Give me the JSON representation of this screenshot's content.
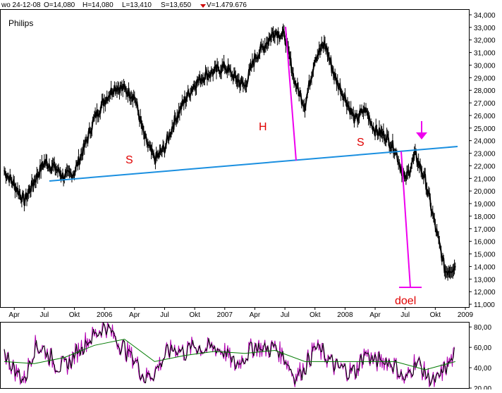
{
  "header": {
    "date": "wo 24-12-08",
    "open": "O=14,080",
    "high": "H=14,080",
    "low": "L=13,410",
    "close": "S=13,650",
    "volume": "V=1.479.676",
    "volume_marker_color": "#cc0000"
  },
  "colors": {
    "price": "#000000",
    "trendline": "#1a8fe0",
    "annotation_lines": "#ee00ee",
    "annotation_text": "#e00000",
    "osc_main": "#000000",
    "osc_fast": "#b000b0",
    "osc_signal": "#007a00"
  },
  "chart_data": [
    {
      "type": "line",
      "title": "Philips",
      "y_axis_side": "right",
      "ylim": [
        11.0,
        34.0
      ],
      "yticks": [
        "34,000",
        "33,000",
        "32,000",
        "31,000",
        "30,000",
        "29,000",
        "28,000",
        "27,000",
        "26,000",
        "25,000",
        "24,000",
        "23,000",
        "22,000",
        "21,000",
        "20,000",
        "19,000",
        "18,000",
        "17,000",
        "16,000",
        "15,000",
        "14,000",
        "13,000",
        "12,000",
        "11,000"
      ],
      "xticks": [
        "Apr",
        "Jul",
        "Okt",
        "2006",
        "Apr",
        "Jul",
        "Okt",
        "2007",
        "Apr",
        "Jul",
        "Okt",
        "2008",
        "Apr",
        "Jul",
        "Okt",
        "2009"
      ],
      "x_start": "2005-03",
      "x_end": "2009-01",
      "series": [
        {
          "x": [
            "2005-03",
            "2005-04",
            "2005-05",
            "2005-06",
            "2005-07",
            "2005-08",
            "2005-09",
            "2005-10",
            "2005-11",
            "2005-12",
            "2006-01",
            "2006-02",
            "2006-03",
            "2006-04",
            "2006-05",
            "2006-06",
            "2006-07",
            "2006-08",
            "2006-09",
            "2006-10",
            "2006-11",
            "2006-12",
            "2007-01",
            "2007-02",
            "2007-03",
            "2007-04",
            "2007-05",
            "2007-06",
            "2007-07",
            "2007-08",
            "2007-09",
            "2007-10",
            "2007-11",
            "2007-12",
            "2008-01",
            "2008-02",
            "2008-03",
            "2008-04",
            "2008-05",
            "2008-06",
            "2008-07",
            "2008-08",
            "2008-09",
            "2008-10",
            "2008-11",
            "2008-12"
          ],
          "values": [
            21.6,
            20.5,
            19.2,
            20.8,
            22.3,
            21.9,
            21.1,
            21.5,
            23.5,
            25.8,
            27.2,
            28.3,
            28.1,
            27.5,
            24.2,
            22.5,
            23.4,
            25.6,
            27.2,
            28.5,
            29.2,
            29.5,
            29.9,
            29.0,
            28.3,
            30.6,
            31.6,
            32.7,
            32.3,
            28.6,
            26.8,
            30.6,
            31.7,
            29.0,
            27.4,
            25.6,
            26.5,
            24.8,
            24.4,
            23.3,
            20.8,
            22.9,
            20.9,
            17.2,
            13.6,
            14.0
          ]
        }
      ],
      "annotations": {
        "left_shoulder": "S",
        "head": "H",
        "right_shoulder": "S",
        "target": "doel"
      }
    },
    {
      "type": "line",
      "ylim": [
        20.0,
        85.0
      ],
      "yticks": [
        "80,00",
        "60,00",
        "40,00",
        "20,00"
      ],
      "series": [
        {
          "name": "main",
          "x": [
            "2005-03",
            "2005-04",
            "2005-05",
            "2005-06",
            "2005-07",
            "2005-08",
            "2005-09",
            "2005-10",
            "2005-11",
            "2005-12",
            "2006-01",
            "2006-02",
            "2006-03",
            "2006-04",
            "2006-05",
            "2006-06",
            "2006-07",
            "2006-08",
            "2006-09",
            "2006-10",
            "2006-11",
            "2006-12",
            "2007-01",
            "2007-02",
            "2007-03",
            "2007-04",
            "2007-05",
            "2007-06",
            "2007-07",
            "2007-08",
            "2007-09",
            "2007-10",
            "2007-11",
            "2007-12",
            "2008-01",
            "2008-02",
            "2008-03",
            "2008-04",
            "2008-05",
            "2008-06",
            "2008-07",
            "2008-08",
            "2008-09",
            "2008-10",
            "2008-11",
            "2008-12"
          ],
          "values": [
            55,
            38,
            28,
            62,
            58,
            45,
            40,
            52,
            65,
            72,
            82,
            70,
            58,
            48,
            30,
            36,
            52,
            60,
            55,
            62,
            58,
            60,
            56,
            42,
            52,
            62,
            58,
            60,
            50,
            30,
            42,
            60,
            52,
            40,
            38,
            36,
            55,
            45,
            48,
            42,
            26,
            48,
            34,
            24,
            40,
            52
          ]
        },
        {
          "name": "signal",
          "x": [
            "2005-03",
            "2005-06",
            "2005-09",
            "2005-12",
            "2006-03",
            "2006-06",
            "2006-09",
            "2006-12",
            "2007-03",
            "2007-06",
            "2007-09",
            "2007-12",
            "2008-03",
            "2008-06",
            "2008-09",
            "2008-12"
          ],
          "values": [
            46,
            44,
            50,
            62,
            68,
            46,
            52,
            56,
            54,
            57,
            46,
            46,
            46,
            46,
            38,
            46
          ]
        }
      ]
    }
  ]
}
